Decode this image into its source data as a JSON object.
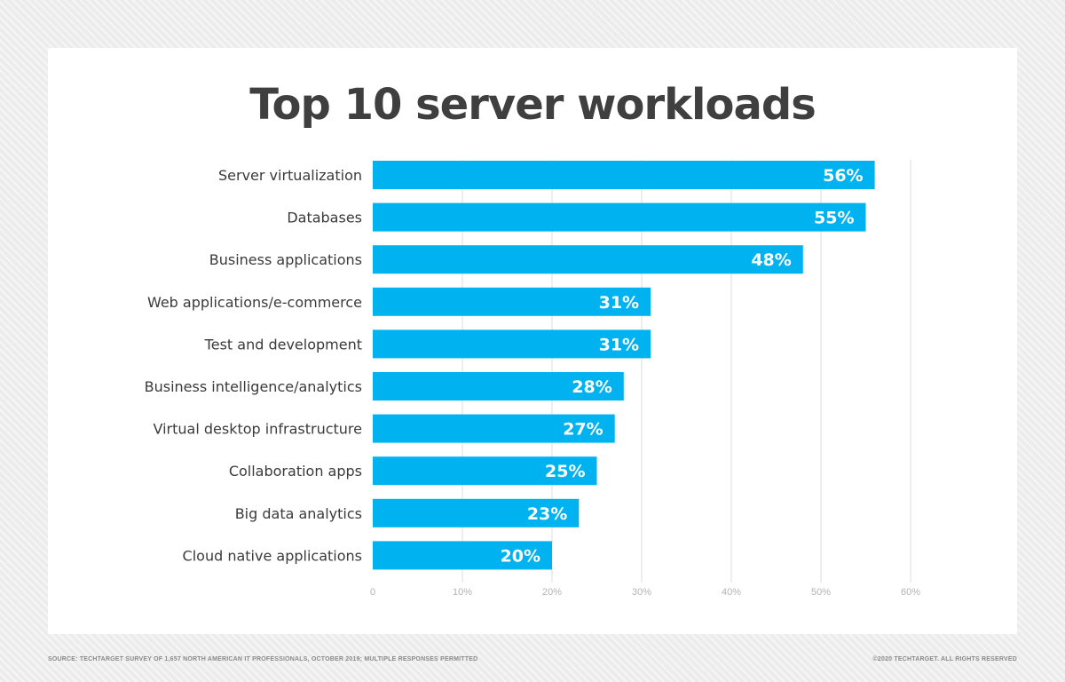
{
  "chart_data": {
    "type": "bar",
    "orientation": "horizontal",
    "title": "Top 10 server workloads",
    "categories": [
      "Server virtualization",
      "Databases",
      "Business applications",
      "Web applications/e-commerce",
      "Test and development",
      "Business intelligence/analytics",
      "Virtual desktop infrastructure",
      "Collaboration apps",
      "Big data analytics",
      "Cloud native applications"
    ],
    "values": [
      56,
      55,
      48,
      31,
      31,
      28,
      27,
      25,
      23,
      20
    ],
    "data_labels": [
      "56%",
      "55%",
      "48%",
      "31%",
      "31%",
      "28%",
      "27%",
      "25%",
      "23%",
      "20%"
    ],
    "xlim": [
      0,
      60
    ],
    "xticks": [
      0,
      10,
      20,
      30,
      40,
      50,
      60
    ],
    "xtick_labels": [
      "0",
      "10%",
      "20%",
      "30%",
      "40%",
      "50%",
      "60%"
    ],
    "grid": true,
    "bar_color": "#00b3f0"
  },
  "footer": {
    "source": "SOURCE: TECHTARGET SURVEY OF 1,657 NORTH AMERICAN IT PROFESSIONALS, OCTOBER 2019; MULTIPLE RESPONSES PERMITTED",
    "copyright": "©2020 TECHTARGET. ALL RIGHTS RESERVED"
  }
}
